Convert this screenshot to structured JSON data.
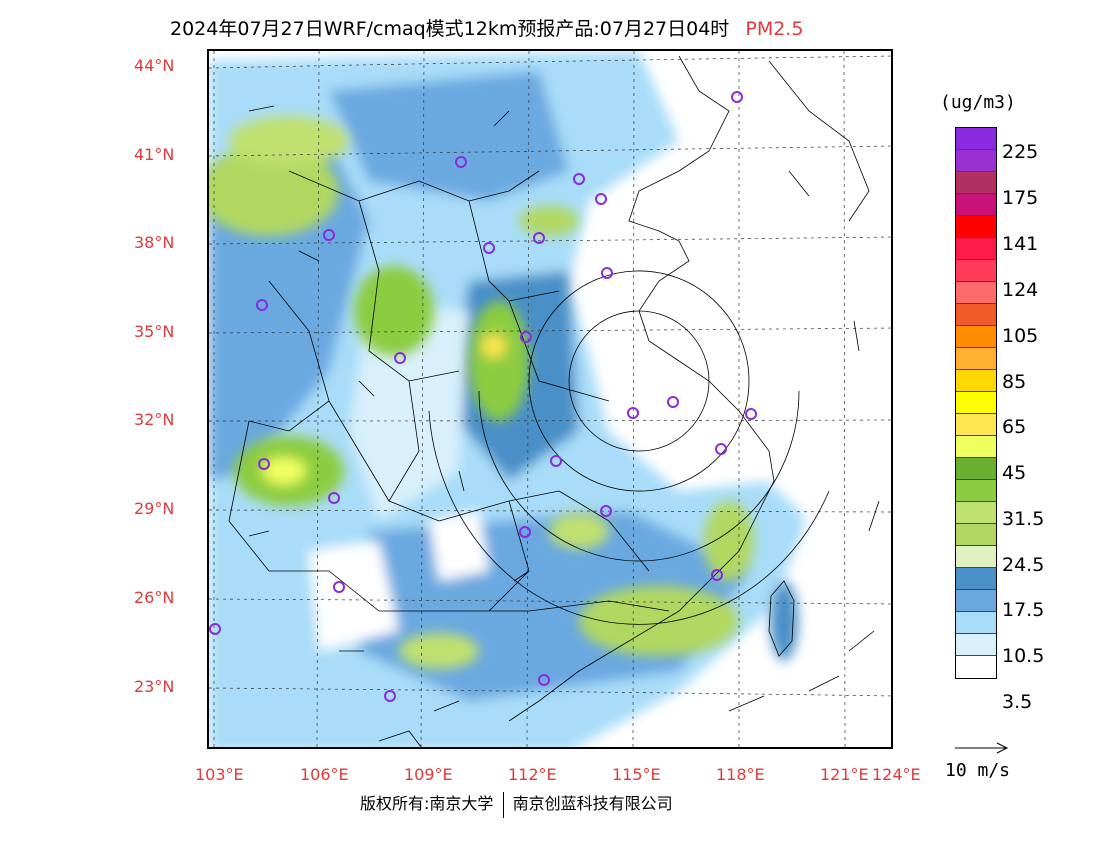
{
  "title": {
    "text": "2024年07月27日WRF/cmaq模式12km预报产品:07月27日04时",
    "pollutant": "PM2.5"
  },
  "map": {
    "lat_labels": [
      "44°N",
      "41°N",
      "38°N",
      "35°N",
      "32°N",
      "29°N",
      "26°N",
      "23°N"
    ],
    "lon_labels": [
      "103°E",
      "106°E",
      "109°E",
      "112°E",
      "115°E",
      "118°E",
      "121°E",
      "124°E"
    ],
    "station_color": "#8a2be2"
  },
  "legend": {
    "unit": "(ug/m3)",
    "colors": [
      "#8a2be2",
      "#9b30d0",
      "#b03060",
      "#c8127a",
      "#ff0000",
      "#ff1a4a",
      "#ff3a5a",
      "#ff6a6a",
      "#f05a28",
      "#ff8c00",
      "#ffb030",
      "#ffd700",
      "#ffff00",
      "#ffe550",
      "#f0ff60",
      "#6ab030",
      "#8ccc40",
      "#c0e070",
      "#b0d860",
      "#e0f0c0",
      "#4a90c8",
      "#6aa8e0",
      "#a8dcf8",
      "#d8f0fc",
      "#ffffff"
    ],
    "labels": [
      "225",
      "175",
      "141",
      "124",
      "105",
      "85",
      "65",
      "45",
      "31.5",
      "24.5",
      "17.5",
      "10.5",
      "3.5"
    ]
  },
  "wind_scale": {
    "label": "10 m/s"
  },
  "footer": {
    "left": "版权所有:南京大学",
    "right": "南京创蓝科技有限公司"
  }
}
